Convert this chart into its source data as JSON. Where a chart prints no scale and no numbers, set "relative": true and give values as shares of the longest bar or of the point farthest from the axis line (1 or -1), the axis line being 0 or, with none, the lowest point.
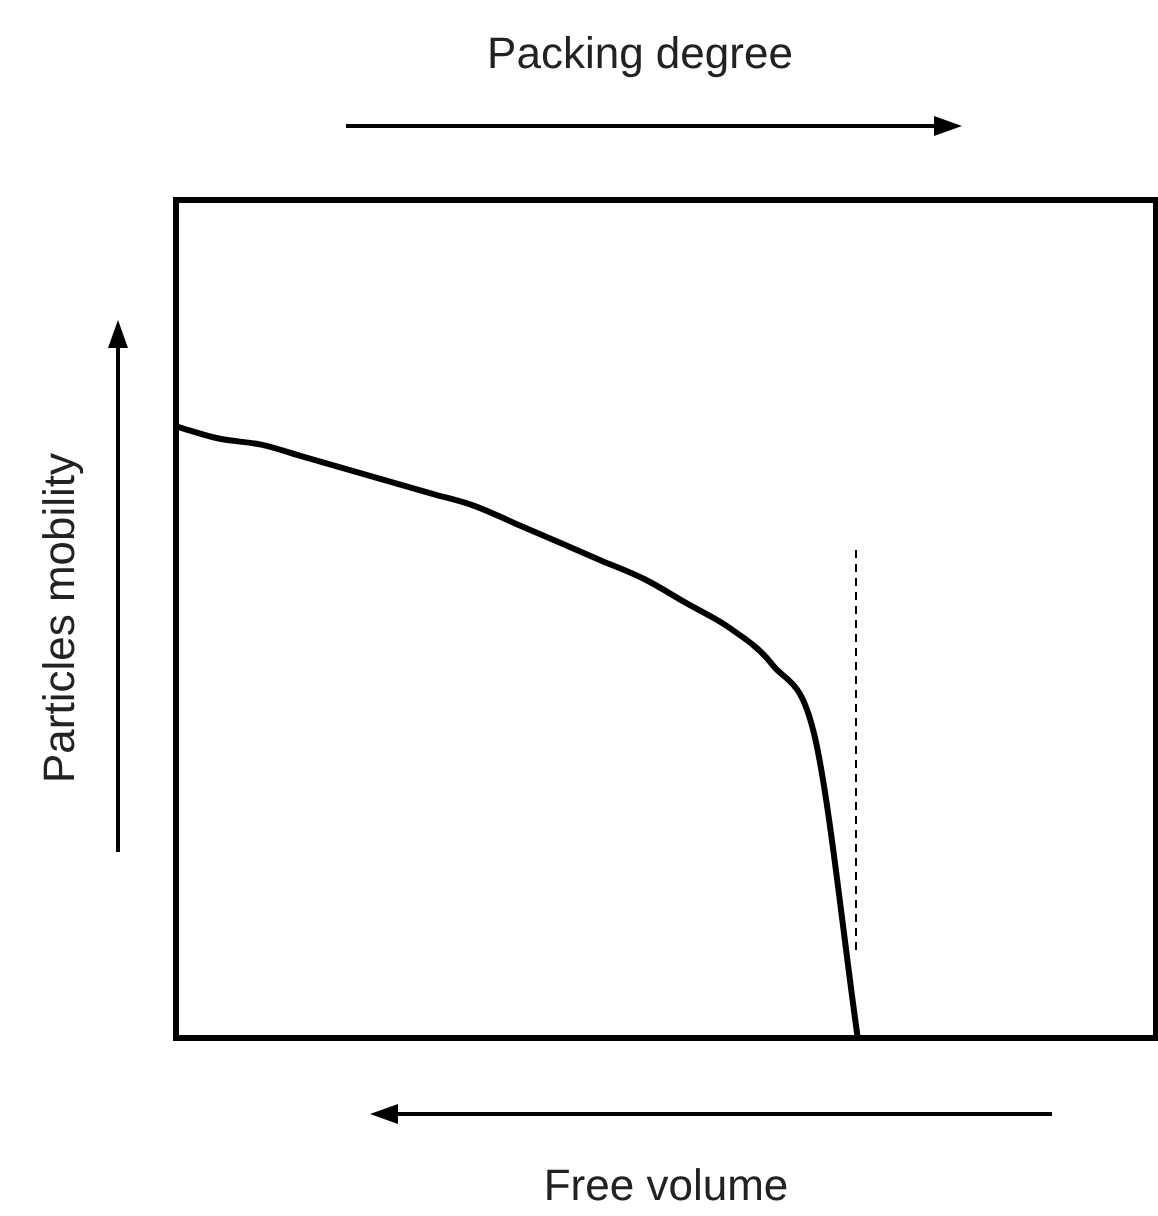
{
  "chart_data": {
    "type": "line",
    "relative": true,
    "xlabel": "Free volume",
    "ylabel": "Particles mobility",
    "annotations": [
      "Packing degree"
    ],
    "categories": [
      null,
      null,
      null,
      null,
      null,
      null,
      null,
      null,
      null,
      null,
      null,
      null,
      null,
      null,
      null,
      null,
      null,
      null,
      null,
      null,
      null,
      null,
      null,
      null
    ],
    "series": [
      {
        "color": "#000000",
        "values": [
          1,
          0.98,
          0.97,
          0.95,
          0.93,
          0.91,
          0.89,
          0.87,
          0.84,
          0.81,
          0.78,
          0.75,
          0.71,
          0.67,
          0.61,
          0.49,
          0,
          null,
          null,
          null,
          null,
          null,
          null,
          null
        ]
      }
    ],
    "legend": false,
    "marker": "none",
    "line_style": "solid"
  }
}
